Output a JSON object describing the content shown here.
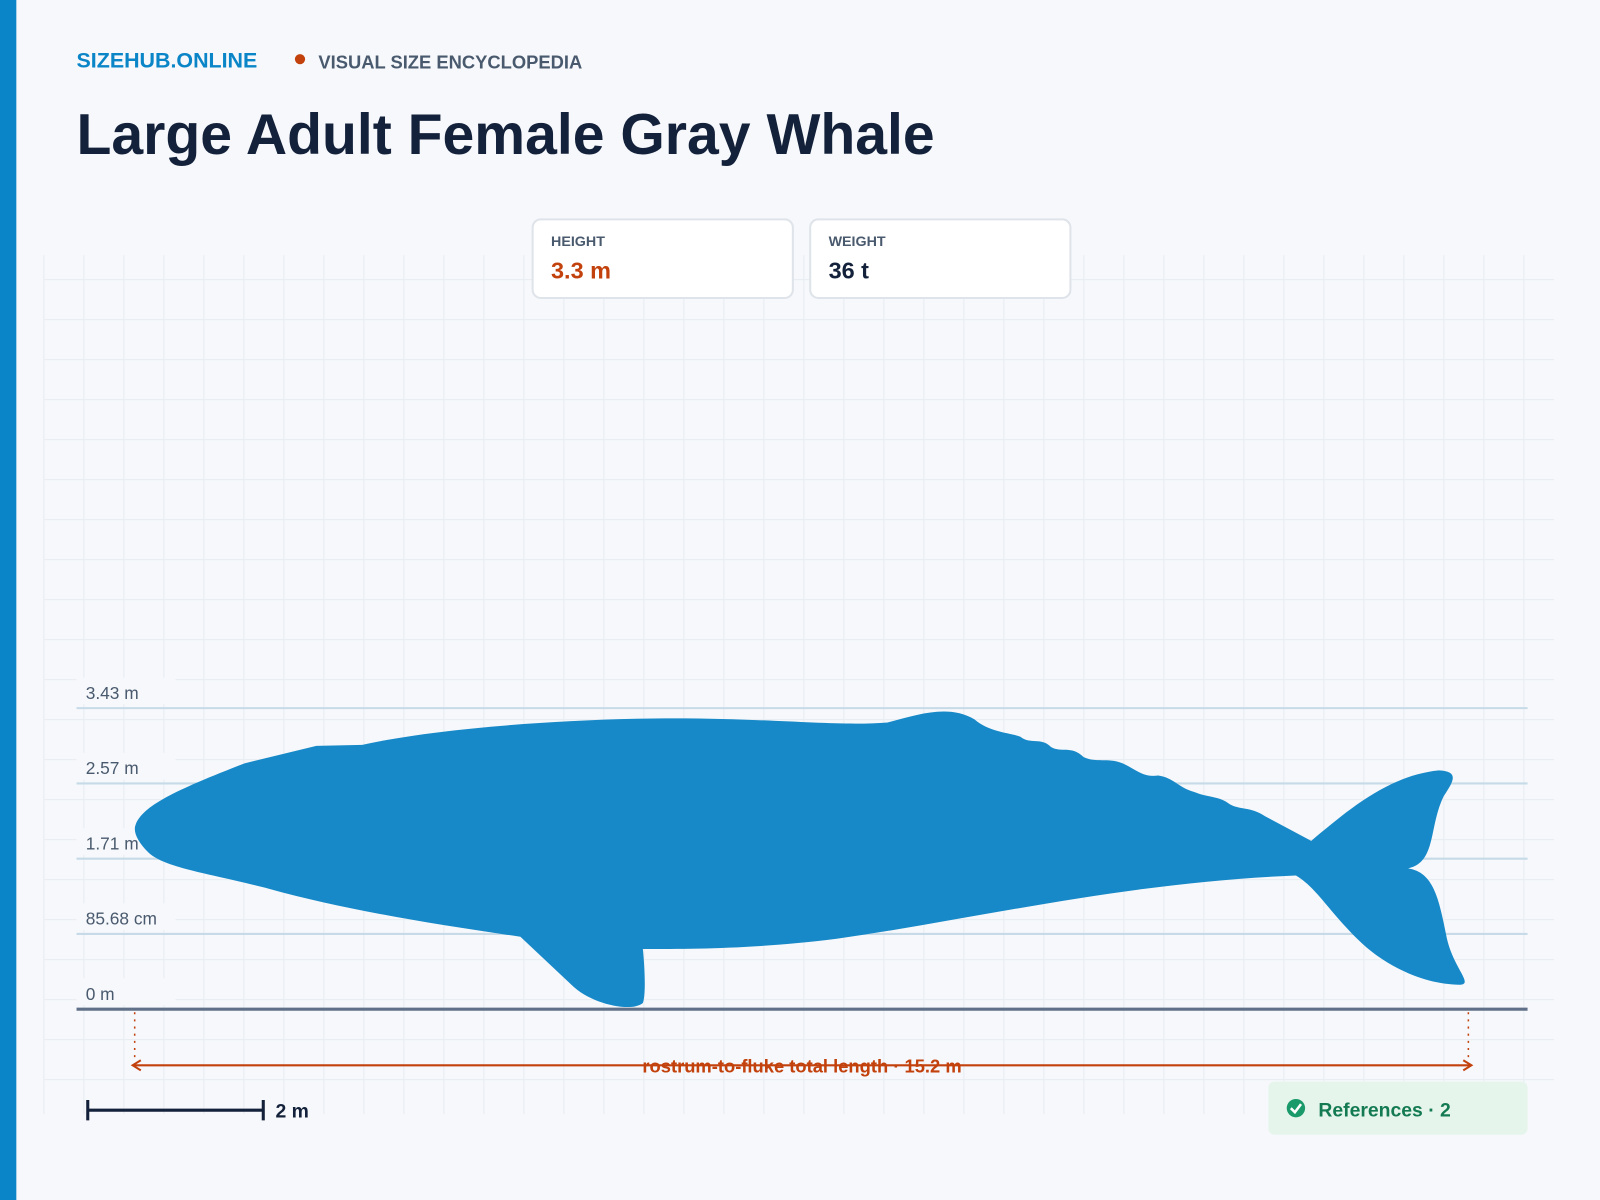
{
  "header": {
    "site": "SIZEHUB.ONLINE",
    "tagline": "VISUAL SIZE ENCYCLOPEDIA",
    "title": "Large Adult Female Gray Whale"
  },
  "stats": [
    {
      "label": "HEIGHT",
      "value": "3.3 m"
    },
    {
      "label": "WEIGHT",
      "value": "36 t"
    }
  ],
  "scale": {
    "ticks": [
      "3.43 m",
      "2.57 m",
      "1.71 m",
      "85.68 cm",
      "0 m"
    ],
    "length_label": "rostrum-to-fluke total length · 15.2 m",
    "scale_bar": "2 m"
  },
  "references": "References · 2"
}
